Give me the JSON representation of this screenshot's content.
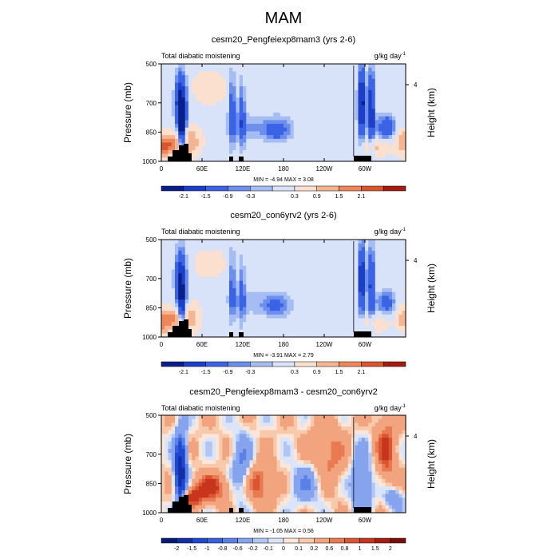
{
  "figure": {
    "title": "MAM"
  },
  "colorbar_colors_11": [
    "#0b1f8a",
    "#1c3fc8",
    "#3a63e6",
    "#6c8fed",
    "#a6bdf4",
    "#d8e2f8",
    "#fce0cf",
    "#f6b592",
    "#ed8658",
    "#d9552e",
    "#a31c0f"
  ],
  "colorbar_colors_16": [
    "#081a78",
    "#102fa8",
    "#1f47d0",
    "#3561e0",
    "#5b80e8",
    "#86a3ee",
    "#b2c6f4",
    "#dbe5f9",
    "#fde6d8",
    "#f9c9ac",
    "#f2a47e",
    "#e97b53",
    "#dc5532",
    "#c7361c",
    "#a31c0f",
    "#7a0d06"
  ],
  "chart_data": [
    {
      "type": "heatmap",
      "panel_id": "p1",
      "title": "cesm20_Pengfeiexp8mam3 (yrs 2-6)",
      "left_label": "Total diabatic moistening",
      "right_label_base": "g/kg day",
      "right_label_exp": "-1",
      "ylabel": "Pressure (mb)",
      "ylabel_right": "Height (km)",
      "xticks": [
        "60E",
        "120E",
        "180",
        "120W",
        "60W"
      ],
      "yticks": [
        "500",
        "700",
        "850",
        "1000"
      ],
      "right_ticks": [
        "4"
      ],
      "stats": "MIN =  -4.94   MAX =   3.08",
      "colorbar_labels": [
        "-2.1",
        "-1.5",
        "-0.9",
        "-0.3",
        "0.3",
        "0.9",
        "1.5",
        "2.1"
      ],
      "ylim": [
        1000,
        500
      ],
      "xlim_deg_east": [
        0,
        360
      ]
    },
    {
      "type": "heatmap",
      "panel_id": "p2",
      "title": "cesm20_con6yrv2 (yrs 2-6)",
      "left_label": "Total diabatic moistening",
      "right_label_base": "g/kg day",
      "right_label_exp": "-1",
      "ylabel": "Pressure (mb)",
      "ylabel_right": "Height (km)",
      "xticks": [
        "60E",
        "120E",
        "180",
        "120W",
        "60W"
      ],
      "yticks": [
        "500",
        "700",
        "850",
        "1000"
      ],
      "right_ticks": [
        "4"
      ],
      "stats": "MIN =  -3.91   MAX =   2.79",
      "colorbar_labels": [
        "-2.1",
        "-1.5",
        "-0.9",
        "-0.3",
        "0.3",
        "0.9",
        "1.5",
        "2.1"
      ],
      "ylim": [
        1000,
        500
      ],
      "xlim_deg_east": [
        0,
        360
      ]
    },
    {
      "type": "heatmap",
      "panel_id": "p3",
      "title": "cesm20_Pengfeiexp8mam3 - cesm20_con6yrv2",
      "left_label": "Total diabatic moistening",
      "right_label_base": "g/kg day",
      "right_label_exp": "-1",
      "ylabel": "Pressure (mb)",
      "ylabel_right": "Height (km)",
      "xticks": [
        "60E",
        "120E",
        "180",
        "120W",
        "60W"
      ],
      "yticks": [
        "500",
        "700",
        "850",
        "1000"
      ],
      "right_ticks": [
        "4"
      ],
      "stats": "MIN =  -1.05   MAX =   0.56",
      "colorbar_labels": [
        "-2",
        "-1.5",
        "-1",
        "-0.8",
        "-0.6",
        "-0.2",
        "-0.1",
        "0",
        "0.1",
        "0.2",
        "0.6",
        "0.8",
        "1",
        "1.5",
        "2"
      ],
      "ylim": [
        1000,
        500
      ],
      "xlim_deg_east": [
        0,
        360
      ]
    }
  ]
}
